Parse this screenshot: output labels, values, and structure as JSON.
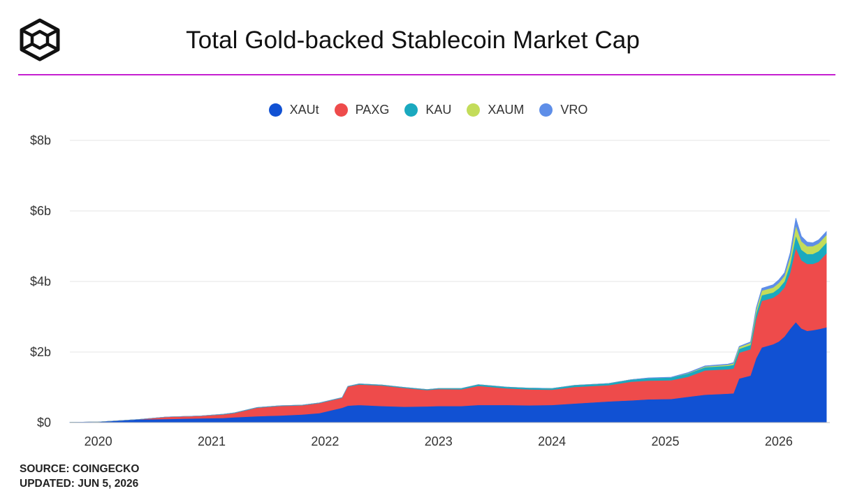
{
  "header": {
    "title": "Total Gold-backed Stablecoin Market Cap"
  },
  "logo": {
    "icon": "cube-logo-icon"
  },
  "colors": {
    "accent_rule": "#c51fd0",
    "XAUt": "#1151d3",
    "PAXG": "#ee4b4b",
    "KAU": "#1aa9bf",
    "XAUM": "#c3dc5a",
    "VRO": "#5e8ee8"
  },
  "legend": {
    "items": [
      {
        "label": "XAUt",
        "color": "#1151d3"
      },
      {
        "label": "PAXG",
        "color": "#ee4b4b"
      },
      {
        "label": "KAU",
        "color": "#1aa9bf"
      },
      {
        "label": "XAUM",
        "color": "#c3dc5a"
      },
      {
        "label": "VRO",
        "color": "#5e8ee8"
      }
    ]
  },
  "chart_data": {
    "type": "area",
    "stacked": true,
    "title": "Total Gold-backed Stablecoin Market Cap",
    "xlabel": "",
    "ylabel": "",
    "xlim": [
      2019.75,
      2026.45
    ],
    "ylim": [
      0,
      8
    ],
    "y_unit": "billions USD",
    "x_ticks": [
      2020,
      2021,
      2022,
      2023,
      2024,
      2025,
      2026
    ],
    "x_tick_labels": [
      "2020",
      "2021",
      "2022",
      "2023",
      "2024",
      "2025",
      "2026"
    ],
    "y_ticks": [
      0,
      2,
      4,
      6,
      8
    ],
    "y_tick_labels": [
      "$0",
      "$2b",
      "$4b",
      "$6b",
      "$8b"
    ],
    "grid": "horizontal",
    "legend_position": "top-center",
    "x": [
      2019.75,
      2020.0,
      2020.15,
      2020.35,
      2020.6,
      2020.9,
      2021.1,
      2021.2,
      2021.4,
      2021.6,
      2021.8,
      2021.95,
      2022.15,
      2022.2,
      2022.3,
      2022.5,
      2022.7,
      2022.9,
      2023.0,
      2023.2,
      2023.35,
      2023.6,
      2023.8,
      2024.0,
      2024.2,
      2024.5,
      2024.7,
      2024.85,
      2025.05,
      2025.2,
      2025.35,
      2025.55,
      2025.6,
      2025.65,
      2025.75,
      2025.8,
      2025.85,
      2025.95,
      2026.0,
      2026.05,
      2026.1,
      2026.15,
      2026.2,
      2026.25,
      2026.3,
      2026.35,
      2026.42
    ],
    "series": [
      {
        "name": "XAUt",
        "values": [
          0.01,
          0.02,
          0.05,
          0.09,
          0.1,
          0.12,
          0.13,
          0.15,
          0.18,
          0.2,
          0.23,
          0.27,
          0.42,
          0.48,
          0.5,
          0.47,
          0.45,
          0.46,
          0.47,
          0.47,
          0.5,
          0.5,
          0.49,
          0.5,
          0.54,
          0.6,
          0.63,
          0.66,
          0.67,
          0.73,
          0.79,
          0.82,
          0.83,
          1.25,
          1.33,
          1.82,
          2.13,
          2.22,
          2.3,
          2.44,
          2.66,
          2.85,
          2.67,
          2.6,
          2.62,
          2.65,
          2.7
        ]
      },
      {
        "name": "PAXG",
        "values": [
          0.0,
          0.0,
          0.0,
          0.0,
          0.06,
          0.07,
          0.1,
          0.12,
          0.24,
          0.27,
          0.26,
          0.28,
          0.28,
          0.54,
          0.58,
          0.58,
          0.53,
          0.46,
          0.48,
          0.47,
          0.54,
          0.47,
          0.45,
          0.43,
          0.47,
          0.46,
          0.53,
          0.53,
          0.53,
          0.57,
          0.69,
          0.69,
          0.7,
          0.73,
          0.75,
          1.12,
          1.32,
          1.32,
          1.35,
          1.39,
          1.59,
          2.1,
          1.93,
          1.9,
          1.88,
          1.91,
          2.1
        ]
      },
      {
        "name": "KAU",
        "values": [
          0.0,
          0.0,
          0.0,
          0.0,
          0.0,
          0.0,
          0.01,
          0.01,
          0.01,
          0.01,
          0.01,
          0.01,
          0.01,
          0.01,
          0.02,
          0.02,
          0.02,
          0.02,
          0.02,
          0.03,
          0.04,
          0.04,
          0.04,
          0.04,
          0.05,
          0.05,
          0.06,
          0.07,
          0.08,
          0.09,
          0.09,
          0.1,
          0.11,
          0.11,
          0.12,
          0.15,
          0.16,
          0.15,
          0.16,
          0.17,
          0.25,
          0.35,
          0.3,
          0.28,
          0.28,
          0.3,
          0.3
        ]
      },
      {
        "name": "XAUM",
        "values": [
          0.0,
          0.0,
          0.0,
          0.0,
          0.0,
          0.0,
          0.0,
          0.0,
          0.0,
          0.0,
          0.0,
          0.0,
          0.0,
          0.0,
          0.0,
          0.0,
          0.0,
          0.0,
          0.0,
          0.0,
          0.0,
          0.0,
          0.0,
          0.0,
          0.0,
          0.0,
          0.0,
          0.0,
          0.0,
          0.01,
          0.02,
          0.03,
          0.04,
          0.05,
          0.06,
          0.1,
          0.13,
          0.14,
          0.15,
          0.16,
          0.2,
          0.28,
          0.24,
          0.22,
          0.22,
          0.22,
          0.22
        ]
      },
      {
        "name": "VRO",
        "values": [
          0.0,
          0.0,
          0.0,
          0.0,
          0.0,
          0.0,
          0.0,
          0.0,
          0.0,
          0.0,
          0.0,
          0.0,
          0.0,
          0.0,
          0.0,
          0.0,
          0.0,
          0.0,
          0.0,
          0.0,
          0.0,
          0.0,
          0.0,
          0.0,
          0.0,
          0.0,
          0.0,
          0.01,
          0.01,
          0.02,
          0.02,
          0.02,
          0.02,
          0.02,
          0.03,
          0.06,
          0.07,
          0.08,
          0.09,
          0.09,
          0.12,
          0.22,
          0.14,
          0.12,
          0.1,
          0.1,
          0.1
        ]
      }
    ]
  },
  "footer": {
    "source": "SOURCE: COINGECKO",
    "updated": "UPDATED: JUN 5, 2026"
  }
}
